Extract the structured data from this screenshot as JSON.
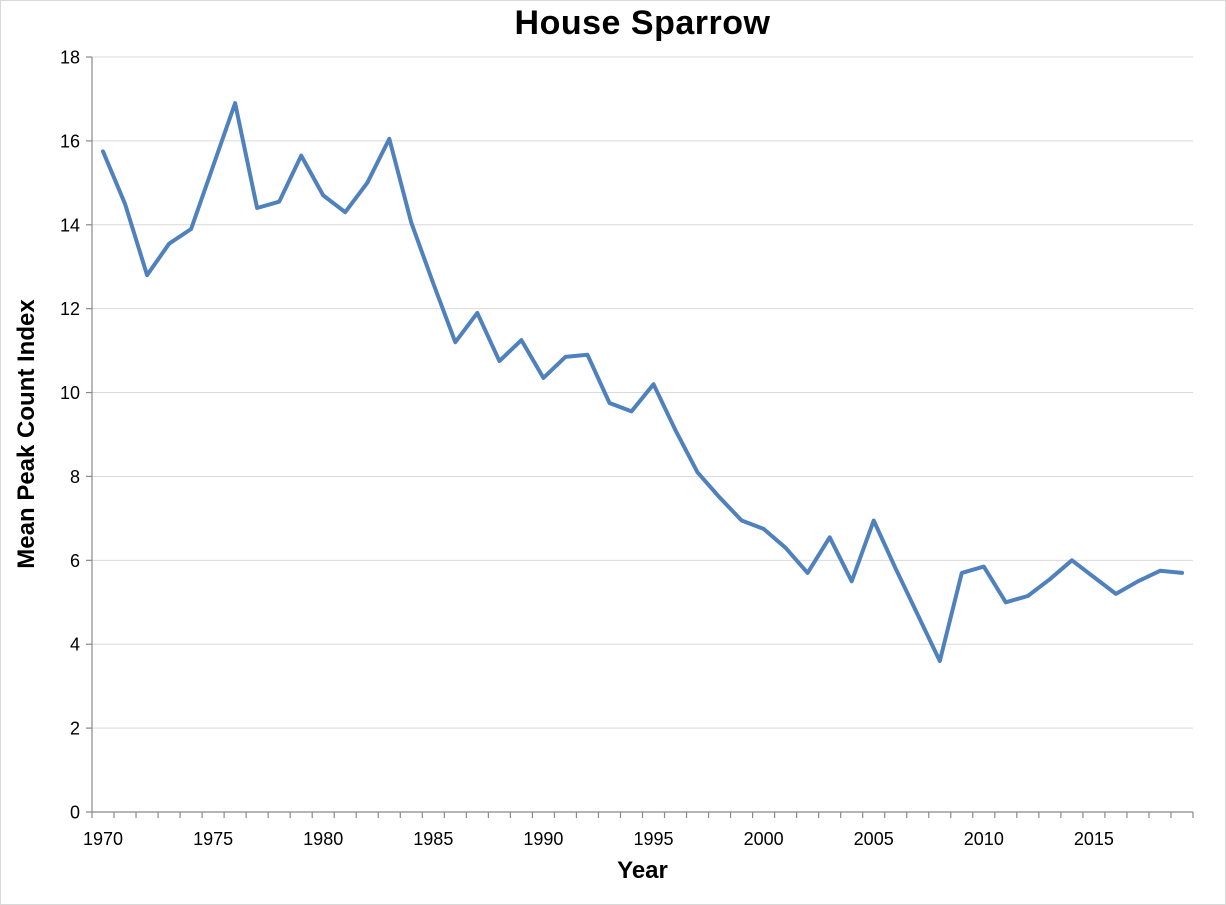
{
  "chart_data": {
    "type": "line",
    "title": "House Sparrow",
    "xlabel": "Year",
    "ylabel": "Mean Peak Count Index",
    "series_name": "Mean Peak Count Index",
    "x": [
      1970,
      1971,
      1972,
      1973,
      1974,
      1975,
      1976,
      1977,
      1978,
      1979,
      1980,
      1981,
      1982,
      1983,
      1984,
      1985,
      1986,
      1987,
      1988,
      1989,
      1990,
      1991,
      1992,
      1993,
      1994,
      1995,
      1996,
      1997,
      1998,
      1999,
      2000,
      2001,
      2002,
      2003,
      2004,
      2005,
      2006,
      2007,
      2008,
      2009,
      2010,
      2011,
      2012,
      2013,
      2014,
      2015,
      2016,
      2017,
      2018,
      2019
    ],
    "values": [
      15.75,
      14.5,
      12.8,
      13.55,
      13.9,
      15.4,
      16.9,
      14.4,
      14.55,
      15.65,
      14.7,
      14.3,
      15.0,
      16.05,
      14.05,
      12.6,
      11.2,
      11.9,
      10.75,
      11.25,
      10.35,
      10.85,
      10.9,
      9.75,
      9.55,
      10.2,
      9.1,
      8.1,
      7.5,
      6.95,
      6.75,
      6.3,
      5.7,
      6.55,
      5.5,
      6.95,
      5.8,
      4.7,
      3.6,
      5.7,
      5.85,
      5.0,
      5.15,
      5.55,
      6.0,
      5.6,
      5.2,
      5.5,
      5.75,
      5.7
    ],
    "ylim": [
      0,
      18
    ],
    "ytick_step": 2,
    "ytick_labels": [
      "0",
      "2",
      "4",
      "6",
      "8",
      "10",
      "12",
      "14",
      "16",
      "18"
    ],
    "xtick_labels": [
      "1970",
      "1975",
      "1980",
      "1985",
      "1990",
      "1995",
      "2000",
      "2005",
      "2010",
      "2015"
    ],
    "xtick_label_interval": 5,
    "grid": true,
    "legend": "none",
    "colors": {
      "line": "#4f81bd",
      "gridline": "#d9d9d9",
      "axis": "#898989",
      "text": "#000000",
      "background": "#ffffff"
    }
  }
}
